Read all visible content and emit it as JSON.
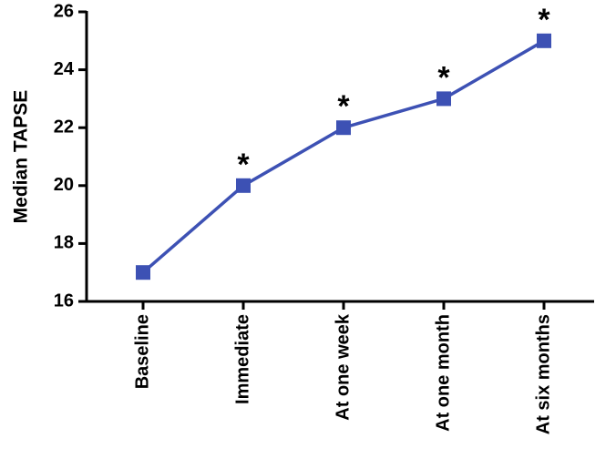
{
  "chart_data": {
    "type": "line",
    "y_label": "Median TAPSE",
    "categories": [
      "Baseline",
      "Immediate",
      "At one week",
      "At one month",
      "At six months"
    ],
    "series": [
      {
        "name": "Median TAPSE",
        "color": "#3d51b4",
        "values": [
          17,
          20,
          22,
          23,
          25
        ]
      }
    ],
    "significance": [
      null,
      "*",
      "*",
      "*",
      "*"
    ],
    "ylim": [
      16,
      26
    ],
    "yticks": [
      16,
      18,
      20,
      22,
      24,
      26
    ]
  }
}
